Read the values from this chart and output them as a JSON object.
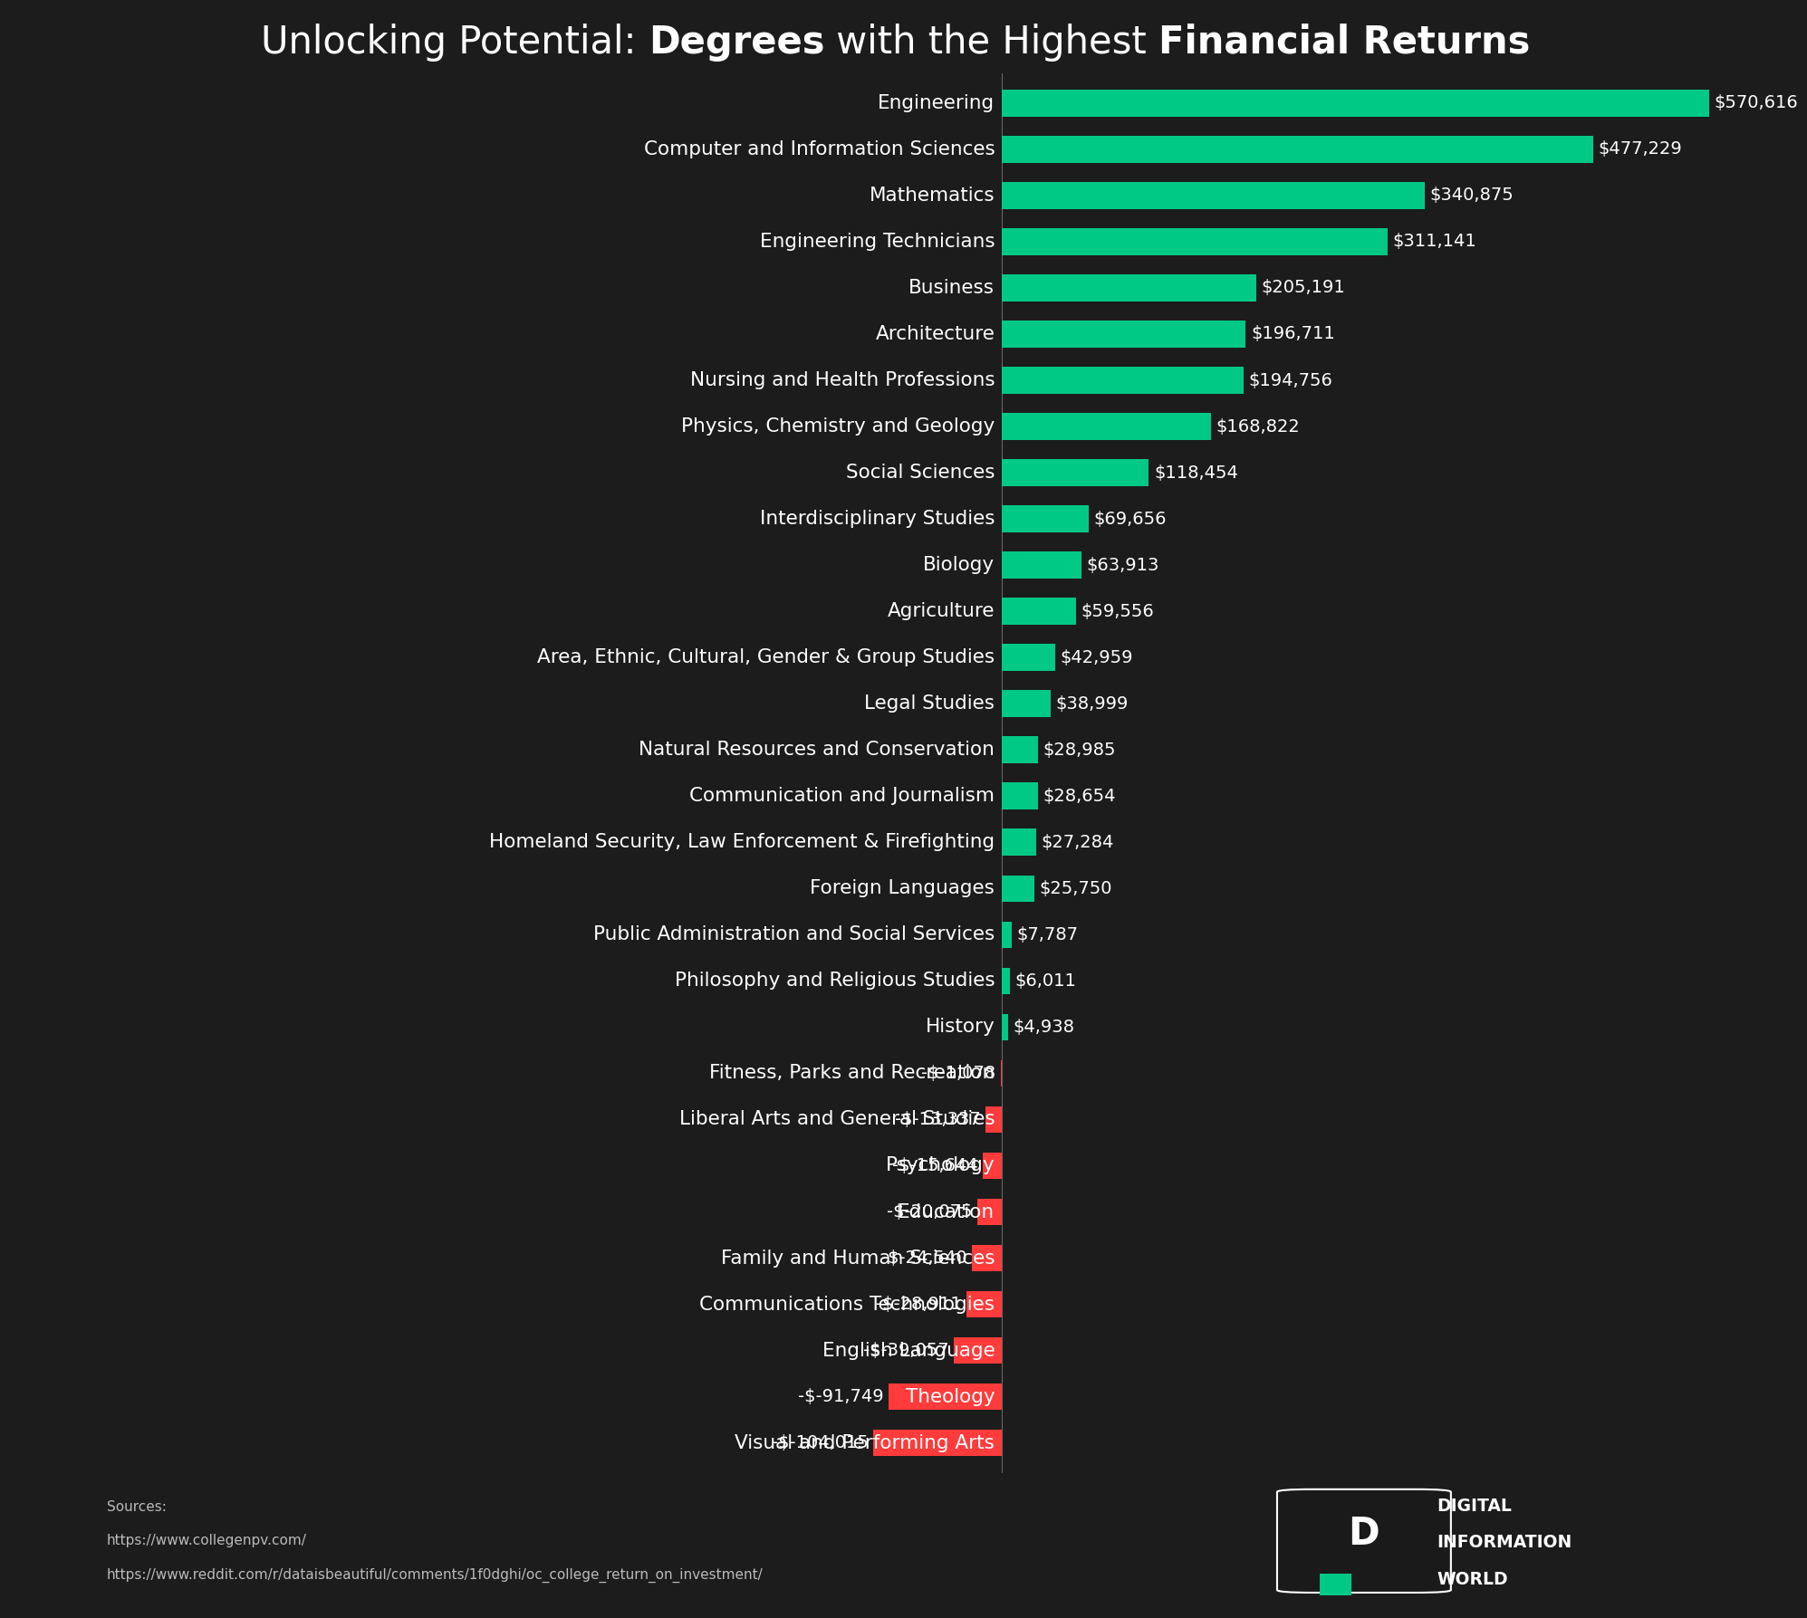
{
  "categories": [
    "Engineering",
    "Computer and Information Sciences",
    "Mathematics",
    "Engineering Technicians",
    "Business",
    "Architecture",
    "Nursing and Health Professions",
    "Physics, Chemistry and Geology",
    "Social Sciences",
    "Interdisciplinary Studies",
    "Biology",
    "Agriculture",
    "Area, Ethnic, Cultural, Gender & Group Studies",
    "Legal Studies",
    "Natural Resources and Conservation",
    "Communication and Journalism",
    "Homeland Security, Law Enforcement & Firefighting",
    "Foreign Languages",
    "Public Administration and Social Services",
    "Philosophy and Religious Studies",
    "History",
    "Fitness, Parks and Recreation",
    "Liberal Arts and General Studies",
    "Psychology",
    "Education",
    "Family and Human Sciences",
    "Communications Technologies",
    "English Language",
    "Theology",
    "Visual and Performing Arts"
  ],
  "values": [
    570616,
    477229,
    340875,
    311141,
    205191,
    196711,
    194756,
    168822,
    118454,
    69656,
    63913,
    59556,
    42959,
    38999,
    28985,
    28654,
    27284,
    25750,
    7787,
    6011,
    4938,
    -1078,
    -13337,
    -15644,
    -20075,
    -24540,
    -28911,
    -39057,
    -91749,
    -104015
  ],
  "bar_color_positive": "#00C985",
  "bar_color_negative": "#FF3B3B",
  "background_color": "#1C1C1C",
  "footer_background": "#2A2A2A",
  "text_color": "#FFFFFF",
  "title_fontsize": 30,
  "label_fontsize": 15.5,
  "value_fontsize": 14,
  "sources_line1": "Sources:",
  "sources_line2": "https://www.collegenpv.com/",
  "sources_line3": "https://www.reddit.com/r/dataisbeautiful/comments/1f0dghi/oc_college_return_on_investment/"
}
